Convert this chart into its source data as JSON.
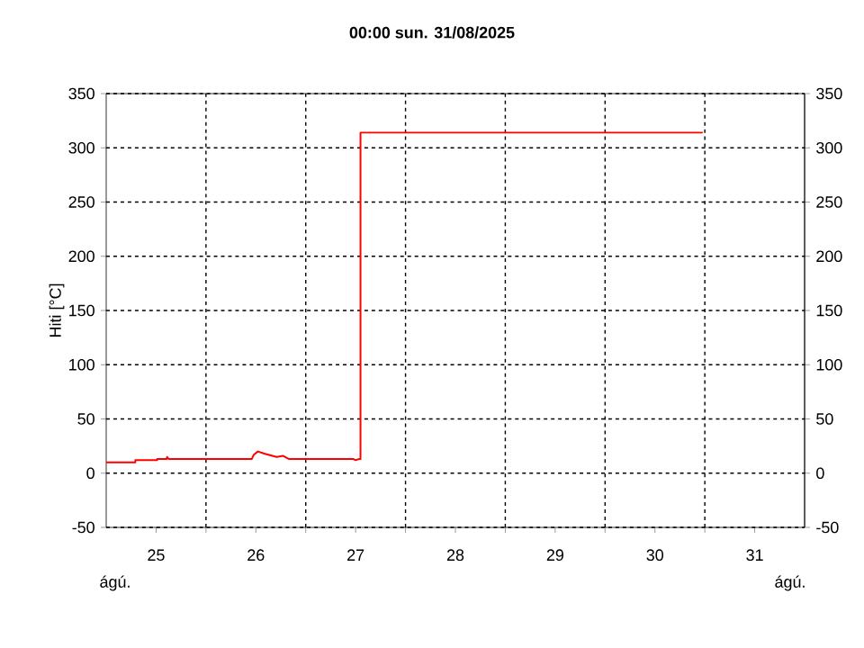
{
  "chart_data": {
    "type": "line",
    "title": "00:00   sun.  31/08/2025",
    "ylabel": "Hiti [°C]",
    "annotations": [
      "ágú.",
      "ágú."
    ],
    "series": [
      {
        "color": "#ff0000",
        "x": [
          "2025-08-25T00:00",
          "2025-08-25T07:00",
          "2025-08-25T07:00",
          "2025-08-25T12:15",
          "2025-08-25T12:15",
          "2025-08-25T14:30",
          "2025-08-25T14:40",
          "2025-08-25T15:00",
          "2025-08-26T11:00",
          "2025-08-26T11:30",
          "2025-08-26T12:30",
          "2025-08-26T14:00",
          "2025-08-26T15:00",
          "2025-08-26T17:00",
          "2025-08-26T18:30",
          "2025-08-26T20:00",
          "2025-08-27T11:30",
          "2025-08-27T12:00",
          "2025-08-27T12:45",
          "2025-08-27T13:10",
          "2025-08-27T13:10",
          "2025-08-30T23:30"
        ],
        "values": [
          10,
          10,
          12,
          12,
          13,
          13,
          15,
          13,
          13,
          17,
          20,
          18,
          17,
          15,
          16,
          13,
          13,
          12,
          13,
          13,
          314,
          314
        ]
      }
    ],
    "xlim": [
      "2025-08-25T00:00",
      "2025-09-01T00:00"
    ],
    "xticks": [
      {
        "value": "2025-08-25T12:00",
        "label": "25"
      },
      {
        "value": "2025-08-26T00:00",
        "label": null
      },
      {
        "value": "2025-08-26T12:00",
        "label": "26"
      },
      {
        "value": "2025-08-27T00:00",
        "label": null
      },
      {
        "value": "2025-08-27T12:00",
        "label": "27"
      },
      {
        "value": "2025-08-28T00:00",
        "label": null
      },
      {
        "value": "2025-08-28T12:00",
        "label": "28"
      },
      {
        "value": "2025-08-29T00:00",
        "label": null
      },
      {
        "value": "2025-08-29T12:00",
        "label": "29"
      },
      {
        "value": "2025-08-30T00:00",
        "label": null
      },
      {
        "value": "2025-08-30T12:00",
        "label": "30"
      },
      {
        "value": "2025-08-31T00:00",
        "label": null
      },
      {
        "value": "2025-08-31T12:00",
        "label": "31"
      }
    ],
    "ylim": [
      -50,
      350
    ],
    "yticks": [
      -50,
      0,
      50,
      100,
      150,
      200,
      250,
      300,
      350
    ],
    "y2lim": [
      -50,
      350
    ],
    "y2ticks": [
      -50,
      0,
      50,
      100,
      150,
      200,
      250,
      300,
      350
    ],
    "grid": true,
    "marker": "none",
    "line_style": "solid"
  }
}
